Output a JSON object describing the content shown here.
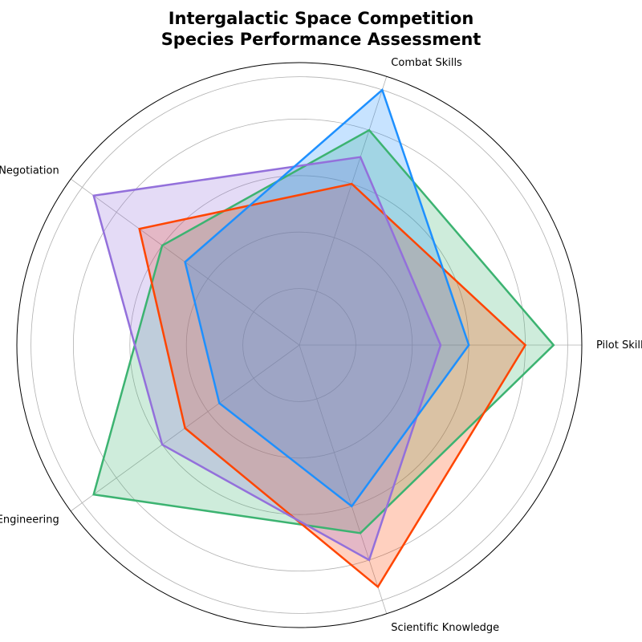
{
  "chart_data": {
    "type": "radar",
    "title_lines": [
      "Intergalactic Space Competition",
      "Species Performance Assessment"
    ],
    "axes": [
      "Pilot Skills",
      "Combat Skills",
      "Negotiation",
      "Engineering",
      "Scientific Knowledge"
    ],
    "rmax": 100,
    "rings": [
      20,
      40,
      60,
      80,
      95
    ],
    "grid": true,
    "legend": "none",
    "series": [
      {
        "color": "#3cb371",
        "values": [
          90,
          80,
          60,
          90,
          70
        ]
      },
      {
        "color": "#ff4500",
        "values": [
          80,
          60,
          70,
          50,
          90
        ]
      },
      {
        "color": "#9370db",
        "values": [
          50,
          70,
          90,
          60,
          80
        ]
      },
      {
        "color": "#1e90ff",
        "values": [
          60,
          95,
          50,
          35,
          60
        ]
      }
    ]
  }
}
